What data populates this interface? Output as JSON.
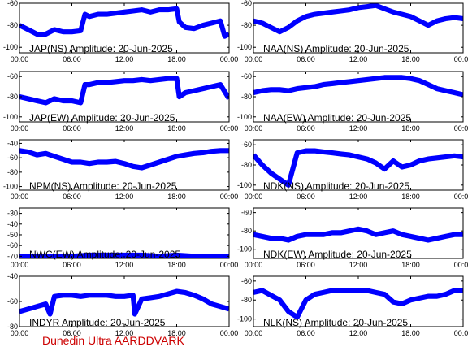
{
  "footer": "Dunedin Ultra AARDDVARK",
  "line_color": "#0000ff",
  "chart_data": [
    {
      "type": "line",
      "title": "JAP(NS) Amplitude: 20-Jun-2025",
      "xticks": [
        "00:00",
        "06:00",
        "12:00",
        "18:00",
        "00:00"
      ],
      "yticks": [
        "-60",
        "-80",
        "-100"
      ],
      "ylim": [
        -105,
        -60
      ],
      "series": [
        {
          "x": [
            0,
            1,
            2,
            3,
            4,
            5,
            6,
            7,
            7.5,
            8,
            9,
            10,
            11,
            12,
            13,
            14,
            15,
            16,
            17,
            18,
            18.3,
            19,
            20,
            21,
            22,
            23,
            23.5,
            24
          ],
          "y": [
            -80,
            -84,
            -88,
            -88,
            -84,
            -86,
            -86,
            -85,
            -70,
            -72,
            -70,
            -70,
            -69,
            -68,
            -67,
            -66,
            -68,
            -66,
            -66,
            -65,
            -77,
            -82,
            -83,
            -80,
            -78,
            -76,
            -90,
            -88
          ]
        }
      ]
    },
    {
      "type": "line",
      "title": "NAA(NS) Amplitude: 20-Jun-2025",
      "xticks": [
        "00:00",
        "06:00",
        "12:00",
        "18:00",
        "00:00"
      ],
      "yticks": [
        "-60",
        "-80",
        "-100"
      ],
      "ylim": [
        -105,
        -60
      ],
      "series": [
        {
          "x": [
            0,
            1,
            2,
            3,
            4,
            5,
            6,
            7,
            8,
            9,
            10,
            11,
            12,
            13,
            14,
            15,
            16,
            17,
            18,
            19,
            20,
            21,
            22,
            23,
            24
          ],
          "y": [
            -76,
            -78,
            -82,
            -86,
            -82,
            -76,
            -72,
            -70,
            -69,
            -68,
            -67,
            -66,
            -64,
            -63,
            -62,
            -65,
            -68,
            -70,
            -72,
            -76,
            -80,
            -76,
            -74,
            -73,
            -74
          ]
        }
      ]
    },
    {
      "type": "line",
      "title": "JAP(EW) Amplitude: 20-Jun-2025",
      "xticks": [
        "00:00",
        "06:00",
        "12:00",
        "18:00",
        "00:00"
      ],
      "yticks": [
        "-60",
        "-80",
        "-100"
      ],
      "ylim": [
        -105,
        -55
      ],
      "series": [
        {
          "x": [
            0,
            1,
            2,
            3,
            4,
            5,
            6,
            7,
            7.5,
            8,
            9,
            10,
            11,
            12,
            13,
            14,
            15,
            16,
            17,
            18,
            18.3,
            19,
            20,
            21,
            22,
            23,
            24
          ],
          "y": [
            -80,
            -82,
            -84,
            -86,
            -82,
            -84,
            -84,
            -86,
            -68,
            -68,
            -66,
            -66,
            -65,
            -64,
            -64,
            -63,
            -64,
            -63,
            -62,
            -62,
            -80,
            -76,
            -74,
            -72,
            -70,
            -68,
            -82
          ]
        }
      ]
    },
    {
      "type": "line",
      "title": "NAA(EW) Amplitude: 20-Jun-2025",
      "xticks": [
        "00:00",
        "06:00",
        "12:00",
        "18:00",
        "00:00"
      ],
      "yticks": [
        "-60",
        "-80",
        "-100"
      ],
      "ylim": [
        -105,
        -55
      ],
      "series": [
        {
          "x": [
            0,
            1,
            2,
            3,
            4,
            5,
            6,
            7,
            8,
            9,
            10,
            11,
            12,
            13,
            14,
            15,
            16,
            17,
            18,
            19,
            20,
            21,
            22,
            23,
            24
          ],
          "y": [
            -76,
            -74,
            -73,
            -73,
            -74,
            -72,
            -71,
            -70,
            -68,
            -67,
            -66,
            -65,
            -64,
            -63,
            -62,
            -61,
            -61,
            -61,
            -62,
            -64,
            -68,
            -72,
            -74,
            -76,
            -78
          ]
        }
      ]
    },
    {
      "type": "line",
      "title": "NPM(NS) Amplitude: 20-Jun-2025",
      "xticks": [
        "00:00",
        "06:00",
        "12:00",
        "18:00",
        "00:00"
      ],
      "yticks": [
        "-40",
        "-60",
        "-80",
        "-100"
      ],
      "ylim": [
        -105,
        -35
      ],
      "series": [
        {
          "x": [
            0,
            1,
            2,
            3,
            4,
            5,
            6,
            7,
            8,
            9,
            10,
            11,
            12,
            13,
            14,
            15,
            16,
            17,
            18,
            19,
            20,
            21,
            22,
            23,
            24
          ],
          "y": [
            -50,
            -52,
            -56,
            -54,
            -58,
            -62,
            -66,
            -66,
            -68,
            -66,
            -66,
            -65,
            -68,
            -72,
            -74,
            -70,
            -66,
            -62,
            -58,
            -56,
            -54,
            -53,
            -51,
            -50,
            -50
          ]
        }
      ]
    },
    {
      "type": "line",
      "title": "NDK(NS) Amplitude: 20-Jun-2025",
      "xticks": [
        "00:00",
        "06:00",
        "12:00",
        "18:00",
        "00:00"
      ],
      "yticks": [
        "-60",
        "-80",
        "-100"
      ],
      "ylim": [
        -105,
        -55
      ],
      "series": [
        {
          "x": [
            0,
            1,
            2,
            3,
            4,
            5,
            6,
            7,
            8,
            9,
            10,
            11,
            12,
            13,
            14,
            15,
            16,
            17,
            18,
            19,
            20,
            21,
            22,
            23,
            24
          ],
          "y": [
            -70,
            -80,
            -88,
            -94,
            -100,
            -68,
            -66,
            -66,
            -67,
            -68,
            -69,
            -70,
            -72,
            -74,
            -78,
            -84,
            -76,
            -82,
            -80,
            -76,
            -74,
            -73,
            -72,
            -71,
            -72
          ]
        }
      ]
    },
    {
      "type": "line",
      "title": "NWC(EW) Amplitude: 20-Jun-2025",
      "xticks": [
        "00:00",
        "06:00",
        "12:00",
        "18:00",
        "00:00"
      ],
      "yticks": [
        "-30",
        "-40",
        "-50",
        "-60",
        "-70"
      ],
      "ylim": [
        -72,
        -25
      ],
      "series": [
        {
          "x": [
            0,
            2,
            4,
            6,
            8,
            10,
            12,
            14,
            16,
            18,
            20,
            22,
            24
          ],
          "y": [
            -70,
            -70,
            -70,
            -70,
            -69,
            -69,
            -69,
            -69,
            -70,
            -69,
            -70,
            -70,
            -70
          ]
        }
      ]
    },
    {
      "type": "line",
      "title": "NDK(EW) Amplitude: 20-Jun-2025",
      "xticks": [
        "00:00",
        "06:00",
        "12:00",
        "18:00",
        "00:00"
      ],
      "yticks": [
        "-60",
        "-80",
        "-100"
      ],
      "ylim": [
        -110,
        -55
      ],
      "series": [
        {
          "x": [
            0,
            1,
            2,
            3,
            4,
            5,
            6,
            7,
            8,
            9,
            10,
            11,
            12,
            13,
            14,
            15,
            16,
            17,
            18,
            19,
            20,
            21,
            22,
            23,
            24
          ],
          "y": [
            -84,
            -86,
            -88,
            -88,
            -90,
            -86,
            -84,
            -84,
            -84,
            -82,
            -82,
            -80,
            -78,
            -80,
            -84,
            -82,
            -80,
            -84,
            -86,
            -88,
            -90,
            -88,
            -86,
            -84,
            -84
          ]
        }
      ]
    },
    {
      "type": "line",
      "title": "INDYR Amplitude: 20-Jun-2025",
      "xticks": [
        "00:00",
        "06:00",
        "12:00",
        "18:00",
        "00:00"
      ],
      "yticks": [
        "-40",
        "-60",
        "-80"
      ],
      "ylim": [
        -80,
        -40
      ],
      "series": [
        {
          "x": [
            0,
            1,
            2,
            3,
            3.5,
            4,
            5,
            6,
            7,
            8,
            9,
            10,
            11,
            12,
            13,
            13.2,
            14,
            15,
            16,
            17,
            18,
            19,
            20,
            21,
            22,
            23,
            24
          ],
          "y": [
            -68,
            -66,
            -64,
            -62,
            -70,
            -56,
            -55,
            -55,
            -56,
            -55,
            -55,
            -55,
            -56,
            -56,
            -55,
            -70,
            -58,
            -57,
            -56,
            -54,
            -52,
            -53,
            -55,
            -58,
            -62,
            -64,
            -66
          ]
        }
      ]
    },
    {
      "type": "line",
      "title": "NLK(NS) Amplitude: 20-Jun-2025",
      "xticks": [
        "00:00",
        "06:00",
        "12:00",
        "18:00",
        "00:00"
      ],
      "yticks": [
        "-60",
        "-80",
        "-100"
      ],
      "ylim": [
        -108,
        -55
      ],
      "series": [
        {
          "x": [
            0,
            1,
            2,
            3,
            4,
            5,
            6,
            7,
            8,
            9,
            10,
            11,
            12,
            13,
            14,
            15,
            16,
            17,
            18,
            19,
            20,
            21,
            22,
            23,
            24
          ],
          "y": [
            -72,
            -70,
            -75,
            -80,
            -92,
            -98,
            -80,
            -74,
            -72,
            -70,
            -70,
            -70,
            -70,
            -70,
            -72,
            -74,
            -82,
            -84,
            -80,
            -78,
            -76,
            -76,
            -74,
            -70,
            -70
          ]
        }
      ]
    }
  ]
}
